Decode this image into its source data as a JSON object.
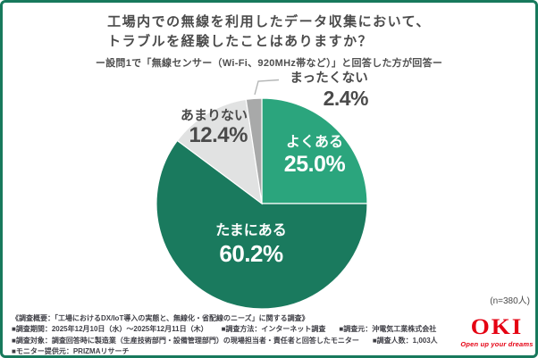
{
  "title": {
    "line1": "工場内での無線を利用したデータ収集において、",
    "line2": "トラブルを経験したことはありますか？",
    "subtitle": "ー設問1で「無線センサー（Wi-Fi、920MHz帯など）」と回答した方が回答ー"
  },
  "chart_data": {
    "type": "pie",
    "title": "工場内での無線を利用したデータ収集において、トラブルを経験したことはありますか？",
    "start_angle_deg": 0,
    "direction": "clockwise",
    "sample_note": "(n=380人)",
    "categories": [
      "よくある",
      "たまにある",
      "あまりない",
      "まったくない"
    ],
    "values": [
      25.0,
      60.2,
      12.4,
      2.4
    ],
    "slices": [
      {
        "label": "よくある",
        "value": 25.0,
        "display": "25.0%",
        "color": "#2ba57d",
        "label_placement": "inside"
      },
      {
        "label": "たまにある",
        "value": 60.2,
        "display": "60.2%",
        "color": "#1a7a5e",
        "label_placement": "inside"
      },
      {
        "label": "あまりない",
        "value": 12.4,
        "display": "12.4%",
        "color": "#e1e2e2",
        "label_placement": "outside"
      },
      {
        "label": "まったくない",
        "value": 2.4,
        "display": "2.4%",
        "color": "#a8a9a9",
        "label_placement": "outside-callout"
      }
    ]
  },
  "footer": {
    "lines": [
      {
        "segments": [
          "《調査概要：「工場におけるDX/IoT導入の実態と、無線化・省配線のニーズ」に関する調査》"
        ]
      },
      {
        "segments": [
          "■調査期間：2025年12月10日（水）～2025年12月11日（木）",
          "■調査方法：インターネット調査",
          "■調査元：沖電気工業株式会社"
        ]
      },
      {
        "segments": [
          "■調査対象：調査回答時に製造業（生産技術部門・設備管理部門）の現場担当者・責任者と回答したモニター",
          "■調査人数：1,003人"
        ]
      },
      {
        "segments": [
          "■モニター提供元：PRIZMAリサーチ"
        ]
      }
    ]
  },
  "logo": {
    "text": "OKI",
    "tagline": "Open up your dreams",
    "color": "#e50012"
  },
  "colors": {
    "frame_border": "#17795c",
    "title_text": "#4b4b4b",
    "outside_label_text": "#4a4a4a",
    "footer_text": "#3f3f46",
    "leader_line": "#b4b6b6"
  }
}
